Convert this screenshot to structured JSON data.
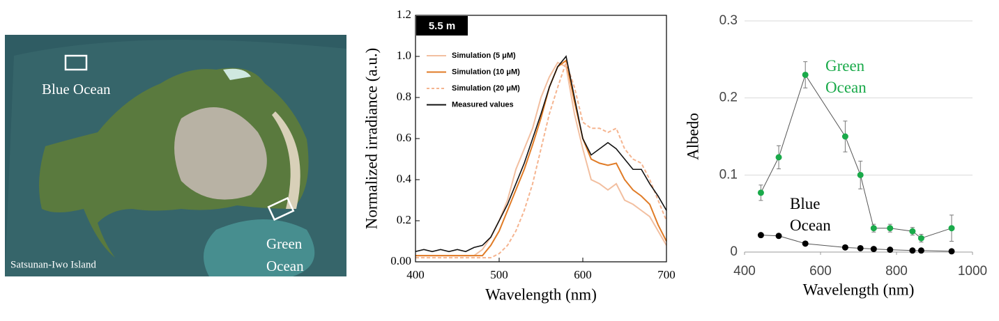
{
  "image": {
    "blue_label": "Blue Ocean",
    "green_label": [
      "Green",
      "Ocean"
    ],
    "island_label": "Satsunan-Iwo Island"
  },
  "chart_data": [
    {
      "type": "line",
      "annotation": "5.5 m",
      "x_label": "Wavelength (nm)",
      "y_label": "Normalized irradiance (a.u.)",
      "xlim": [
        400,
        700
      ],
      "xticks": [
        400,
        500,
        600,
        700
      ],
      "ylim": [
        0,
        1.2
      ],
      "yticks": [
        {
          "value": 0,
          "label": "0.00"
        },
        0.2,
        0.4,
        0.6,
        0.8,
        {
          "value": 1,
          "label": "1.0"
        },
        1.2
      ],
      "x": [
        400,
        410,
        420,
        430,
        440,
        450,
        460,
        470,
        480,
        490,
        500,
        510,
        520,
        530,
        540,
        550,
        560,
        570,
        580,
        590,
        600,
        610,
        620,
        630,
        640,
        650,
        660,
        670,
        680,
        690,
        700
      ],
      "series": [
        {
          "name": "Simulation (5 μM)",
          "color": "#f2bfa0",
          "dash": false,
          "values": [
            0.03,
            0.03,
            0.03,
            0.03,
            0.03,
            0.03,
            0.03,
            0.03,
            0.06,
            0.12,
            0.2,
            0.3,
            0.45,
            0.55,
            0.65,
            0.8,
            0.9,
            0.97,
            0.95,
            0.72,
            0.55,
            0.4,
            0.38,
            0.35,
            0.38,
            0.3,
            0.28,
            0.25,
            0.22,
            0.15,
            0.08
          ]
        },
        {
          "name": "Simulation (10 μM)",
          "color": "#e07b26",
          "dash": false,
          "values": [
            0.03,
            0.03,
            0.03,
            0.03,
            0.03,
            0.03,
            0.03,
            0.03,
            0.03,
            0.08,
            0.15,
            0.25,
            0.35,
            0.45,
            0.57,
            0.7,
            0.85,
            0.95,
            0.98,
            0.78,
            0.6,
            0.5,
            0.48,
            0.47,
            0.48,
            0.4,
            0.35,
            0.32,
            0.28,
            0.18,
            0.1
          ]
        },
        {
          "name": "Simulation (20 μM)",
          "color": "#f5b48f",
          "dash": true,
          "values": [
            0.02,
            0.02,
            0.02,
            0.02,
            0.02,
            0.02,
            0.02,
            0.02,
            0.02,
            0.02,
            0.04,
            0.08,
            0.15,
            0.25,
            0.38,
            0.55,
            0.72,
            0.85,
            0.97,
            0.85,
            0.68,
            0.65,
            0.65,
            0.63,
            0.65,
            0.55,
            0.5,
            0.48,
            0.4,
            0.3,
            0.2
          ]
        },
        {
          "name": "Measured values",
          "color": "#111111",
          "dash": false,
          "values": [
            0.05,
            0.06,
            0.05,
            0.06,
            0.05,
            0.06,
            0.05,
            0.07,
            0.08,
            0.12,
            0.2,
            0.28,
            0.38,
            0.48,
            0.6,
            0.72,
            0.85,
            0.95,
            1.0,
            0.8,
            0.6,
            0.52,
            0.55,
            0.58,
            0.55,
            0.5,
            0.45,
            0.45,
            0.38,
            0.32,
            0.25
          ]
        }
      ]
    },
    {
      "type": "scatter-line",
      "x_label": "Wavelength (nm)",
      "y_label": "Albedo",
      "grid": true,
      "xlim": [
        400,
        1000
      ],
      "xticks": [
        400,
        600,
        800,
        1000
      ],
      "ylim": [
        0,
        0.3
      ],
      "yticks": [
        0,
        0.1,
        0.2,
        0.3
      ],
      "x": [
        443,
        490,
        560,
        665,
        705,
        740,
        783,
        842,
        865,
        945
      ],
      "series": [
        {
          "name": "Green Ocean",
          "color": "#1aaa4a",
          "values": [
            0.077,
            0.123,
            0.23,
            0.15,
            0.1,
            0.031,
            0.031,
            0.027,
            0.018,
            0.031
          ],
          "errors": [
            0.01,
            0.015,
            0.017,
            0.02,
            0.018,
            0.005,
            0.005,
            0.005,
            0.005,
            0.017
          ]
        },
        {
          "name": "Blue Ocean",
          "color": "#000000",
          "values": [
            0.022,
            0.021,
            0.011,
            0.006,
            0.005,
            0.004,
            0.003,
            0.002,
            0.002,
            0.001
          ]
        }
      ]
    }
  ]
}
